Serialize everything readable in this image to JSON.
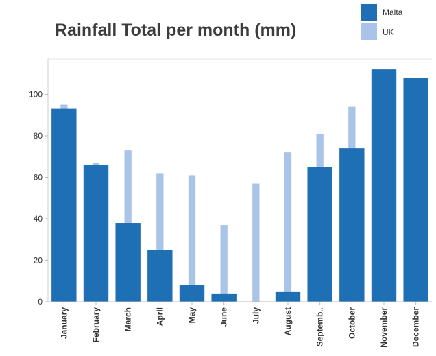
{
  "chart_data": {
    "type": "bar",
    "title": "Rainfall Total per month (mm)",
    "xlabel": "",
    "ylabel": "",
    "ylim": [
      0,
      117
    ],
    "yticks": [
      0,
      20,
      40,
      60,
      80,
      100
    ],
    "grid": false,
    "legend_position": "top-right",
    "categories": [
      "January",
      "February",
      "March",
      "April",
      "May",
      "June",
      "July",
      "August",
      "Septemb..",
      "October",
      "November",
      "December"
    ],
    "series": [
      {
        "name": "Malta",
        "color": "#1f6fb4",
        "values": [
          93,
          66,
          38,
          25,
          8,
          4,
          0,
          5,
          65,
          74,
          112,
          108
        ]
      },
      {
        "name": "UK",
        "color": "#a9c4e8",
        "values": [
          95,
          67,
          73,
          62,
          61,
          37,
          57,
          72,
          81,
          94,
          null,
          null
        ]
      }
    ]
  }
}
